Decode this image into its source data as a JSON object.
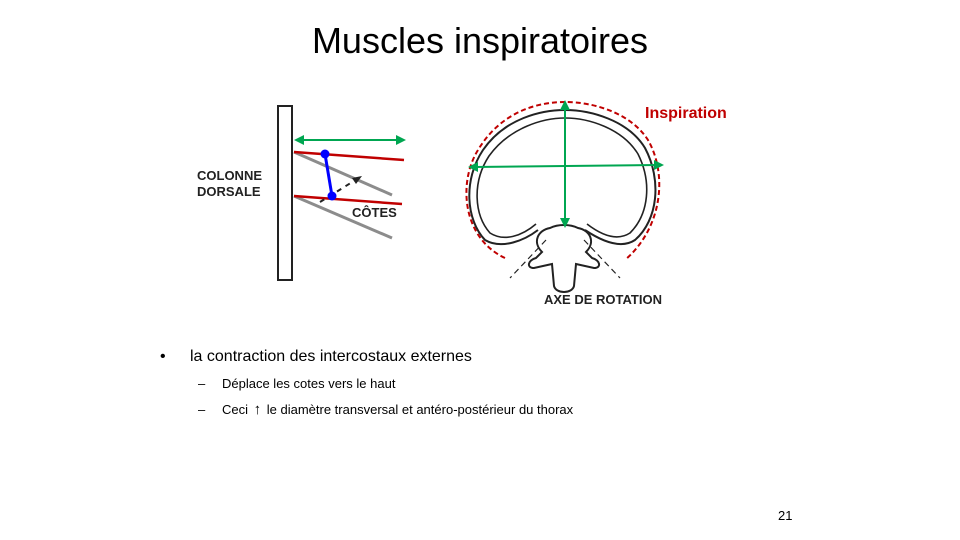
{
  "slide": {
    "title": "Muscles inspiratoires",
    "page_number": "21"
  },
  "diagram": {
    "left_labels": {
      "spine_line1": "COLONNE",
      "spine_line2": "DORSALE",
      "ribs": "CÔTES"
    },
    "right_labels": {
      "inspiration": "Inspiration",
      "axis": "AXE DE ROTATION"
    },
    "colors": {
      "red": "#c00000",
      "green": "#00a651",
      "blue": "#0000ff",
      "gray": "#8c8c8c",
      "black": "#222222"
    }
  },
  "bullets": {
    "main": "la contraction des intercostaux externes",
    "sub1": "Déplace les cotes vers le haut",
    "sub2_before": "Ceci",
    "sub2_icon": "arrow-up-icon",
    "sub2_after": "le diamètre  transversal et antéro-postérieur  du thorax"
  }
}
